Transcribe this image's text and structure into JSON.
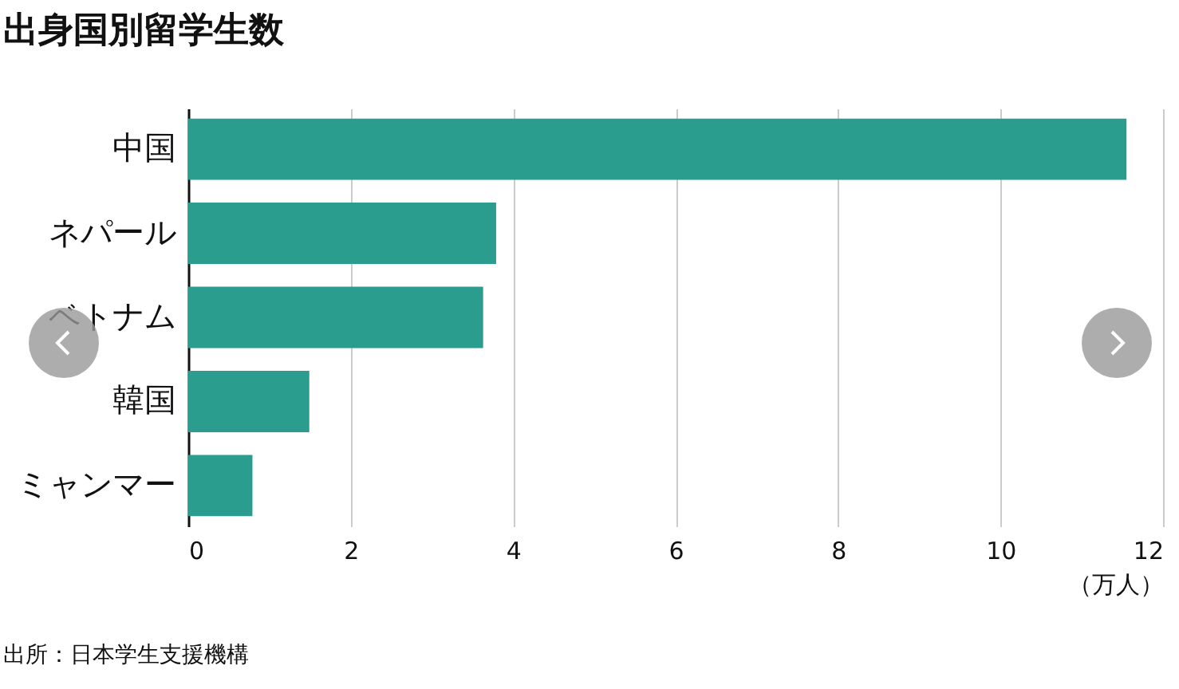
{
  "chart_data": {
    "type": "bar",
    "orientation": "horizontal",
    "title": "出身国別留学生数",
    "categories": [
      "中国",
      "ネパール",
      "ベトナム",
      "韓国",
      "ミャンマー"
    ],
    "values": [
      11.55,
      3.79,
      3.63,
      1.49,
      0.79
    ],
    "color": "#2a9d8f",
    "xlim": [
      0,
      12
    ],
    "xticks": [
      0,
      2,
      4,
      6,
      8,
      10,
      12
    ],
    "xlabel": "（万人）",
    "grid": "x",
    "annotations": [
      "出所：日本学生支援機構"
    ]
  }
}
